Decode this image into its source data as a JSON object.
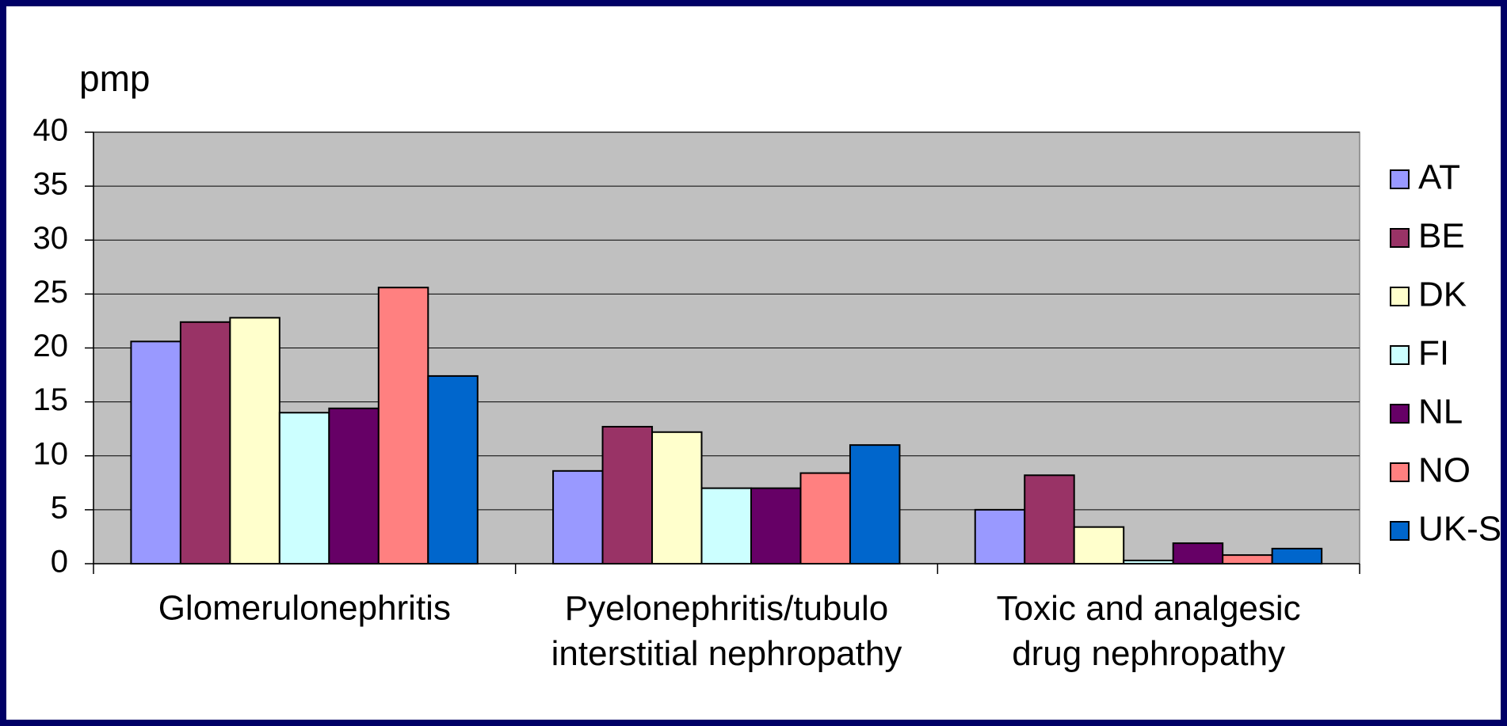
{
  "chart_data": {
    "type": "bar",
    "y_label": "pmp",
    "categories": [
      "Glomerulonephritis",
      "Pyelonephritis/tubulo\ninterstitial nephropathy",
      "Toxic and analgesic\ndrug nephropathy"
    ],
    "series": [
      {
        "name": "AT",
        "color": "#9999ff",
        "values": [
          20.6,
          8.6,
          5.0
        ]
      },
      {
        "name": "BE",
        "color": "#993366",
        "values": [
          22.4,
          12.7,
          8.2
        ]
      },
      {
        "name": "DK",
        "color": "#ffffcc",
        "values": [
          22.8,
          12.2,
          3.4
        ]
      },
      {
        "name": "FI",
        "color": "#ccffff",
        "values": [
          14.0,
          7.0,
          0.3
        ]
      },
      {
        "name": "NL",
        "color": "#660066",
        "values": [
          14.4,
          7.0,
          1.9
        ]
      },
      {
        "name": "NO",
        "color": "#ff8080",
        "values": [
          25.6,
          8.4,
          0.8
        ]
      },
      {
        "name": "UK-S",
        "color": "#0066cc",
        "values": [
          17.4,
          11.0,
          1.4
        ]
      }
    ],
    "ylim": [
      0,
      40
    ],
    "yticks": [
      0,
      5,
      10,
      15,
      20,
      25,
      30,
      35,
      40
    ],
    "grid": true,
    "legend": "right"
  }
}
